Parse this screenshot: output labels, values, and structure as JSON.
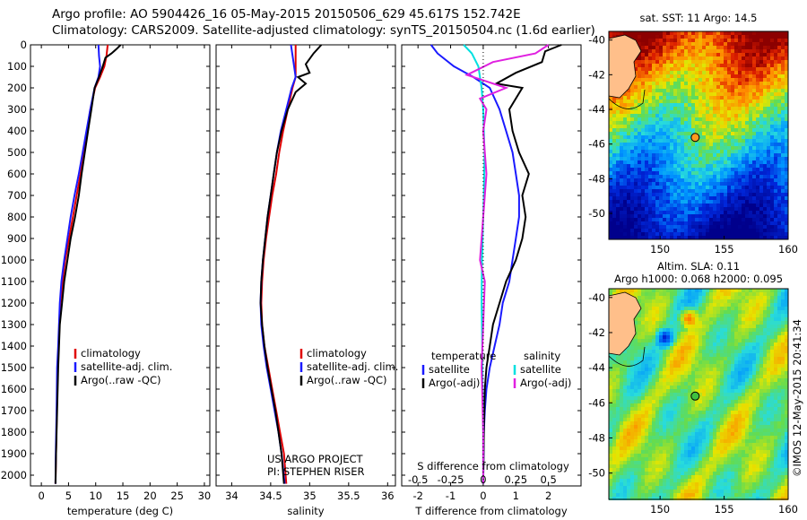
{
  "header": {
    "line1": "Argo profile: AO 5904426_16 05-May-2015 20150506_629 45.617S 152.742E",
    "line2": "Climatology: CARS2009. Satellite-adjusted climatology: synTS_20150504.nc (1.6d earlier)"
  },
  "colors": {
    "climatology": "#e00000",
    "satellite": "#1a1aff",
    "argo": "#000000",
    "satellite_s": "#00e0e0",
    "argo_s": "#e020e0"
  },
  "chart_data": [
    {
      "type": "line",
      "title": "",
      "xlabel": "temperature (deg C)",
      "ylabel": "",
      "xlim": [
        -2,
        31
      ],
      "ylim": [
        2050,
        0
      ],
      "xticks": [
        "0",
        "5",
        "10",
        "15",
        "20",
        "25",
        "30"
      ],
      "yticks": [
        "0",
        "100",
        "200",
        "300",
        "400",
        "500",
        "600",
        "700",
        "800",
        "900",
        "1000",
        "1100",
        "1200",
        "1300",
        "1400",
        "1500",
        "1600",
        "1700",
        "1800",
        "1900",
        "2000"
      ],
      "legend": [
        "climatology",
        "satellite-adj. clim.",
        "Argo(..raw -QC)"
      ],
      "series": [
        {
          "name": "climatology",
          "color_key": "climatology",
          "x": [
            12.2,
            12.0,
            11.6,
            10.8,
            9.9,
            9.0,
            8.4,
            7.8,
            7.2,
            6.5,
            5.8,
            5.1,
            4.4,
            3.9,
            3.5,
            3.2,
            3.0,
            2.85,
            2.7,
            2.6
          ],
          "y": [
            0,
            50,
            100,
            150,
            200,
            300,
            400,
            500,
            600,
            700,
            800,
            900,
            1000,
            1100,
            1200,
            1400,
            1500,
            1700,
            1900,
            2040
          ]
        },
        {
          "name": "satellite-adj. clim.",
          "color_key": "satellite",
          "x": [
            10.5,
            10.6,
            10.8,
            10.5,
            9.8,
            9.0,
            8.3,
            7.6,
            6.9,
            6.1,
            5.4,
            4.8,
            4.2,
            3.7,
            3.4,
            3.1,
            2.9,
            2.8,
            2.65,
            2.6
          ],
          "y": [
            0,
            50,
            100,
            150,
            200,
            300,
            400,
            500,
            600,
            700,
            800,
            900,
            1000,
            1100,
            1200,
            1400,
            1500,
            1700,
            1900,
            2040
          ]
        },
        {
          "name": "Argo(..raw -QC)",
          "color_key": "argo",
          "x": [
            14.6,
            13.8,
            12.9,
            11.8,
            11.3,
            10.6,
            9.8,
            9.2,
            8.6,
            8.0,
            7.4,
            6.9,
            6.2,
            5.4,
            4.8,
            4.2,
            3.8,
            3.4,
            3.1,
            2.9,
            2.8,
            2.7,
            2.6
          ],
          "y": [
            0,
            20,
            40,
            60,
            100,
            150,
            200,
            300,
            400,
            500,
            600,
            700,
            800,
            900,
            1000,
            1100,
            1200,
            1300,
            1500,
            1700,
            1800,
            1900,
            2040
          ]
        }
      ]
    },
    {
      "type": "line",
      "title": "",
      "xlabel": "salinity",
      "ylabel": "",
      "xlim": [
        33.8,
        36.1
      ],
      "ylim": [
        2050,
        0
      ],
      "xticks": [
        "34",
        "34.5",
        "35",
        "35.5",
        "36"
      ],
      "legend": [
        "climatology",
        "satellite-adj. clim.",
        "Argo(..raw -QC)"
      ],
      "series": [
        {
          "name": "climatology",
          "color_key": "climatology",
          "x": [
            34.82,
            34.82,
            34.82,
            34.78,
            34.72,
            34.66,
            34.61,
            34.57,
            34.52,
            34.48,
            34.44,
            34.41,
            34.39,
            34.38,
            34.39,
            34.42,
            34.47,
            34.52,
            34.57,
            34.62,
            34.67,
            34.7
          ],
          "y": [
            0,
            100,
            150,
            200,
            300,
            400,
            500,
            600,
            700,
            800,
            900,
            1000,
            1100,
            1200,
            1300,
            1400,
            1500,
            1600,
            1700,
            1800,
            1900,
            2040
          ]
        },
        {
          "name": "satellite-adj. clim.",
          "color_key": "satellite",
          "x": [
            34.76,
            34.8,
            34.82,
            34.77,
            34.7,
            34.63,
            34.58,
            34.54,
            34.5,
            34.46,
            34.43,
            34.4,
            34.38,
            34.37,
            34.38,
            34.41,
            34.45,
            34.5,
            34.55,
            34.6,
            34.64,
            34.68
          ],
          "y": [
            0,
            100,
            150,
            200,
            300,
            400,
            500,
            600,
            700,
            800,
            900,
            1000,
            1100,
            1200,
            1300,
            1400,
            1500,
            1600,
            1700,
            1800,
            1900,
            2040
          ]
        },
        {
          "name": "Argo(..raw -QC)",
          "color_key": "argo",
          "x": [
            35.15,
            35.05,
            34.95,
            35.0,
            34.85,
            34.95,
            34.82,
            34.72,
            34.64,
            34.58,
            34.54,
            34.5,
            34.46,
            34.43,
            34.4,
            34.38,
            34.37,
            34.39,
            34.42,
            34.46,
            34.51,
            34.56,
            34.6,
            34.64,
            34.67
          ],
          "y": [
            0,
            40,
            90,
            130,
            150,
            180,
            220,
            300,
            400,
            500,
            600,
            700,
            800,
            900,
            1000,
            1100,
            1200,
            1300,
            1400,
            1500,
            1600,
            1700,
            1800,
            1900,
            2040
          ]
        }
      ]
    },
    {
      "type": "line",
      "title": "",
      "xlabel": "T difference from climatology",
      "xlabel_top": "S difference from climatology",
      "xlim": [
        -2.5,
        3.0
      ],
      "ylim": [
        2050,
        0
      ],
      "xticks": [
        "-2",
        "-1",
        "0",
        "1",
        "2"
      ],
      "xticks_top": [
        "-0.5",
        "-0.25",
        "0",
        "0.25",
        "0.5"
      ],
      "legend": [
        "temperature",
        "satellite",
        "Argo(-adj)",
        "salinity",
        "satellite",
        "Argo(-adj)"
      ],
      "series": [
        {
          "name": "satellite",
          "color_key": "satellite",
          "x": [
            -1.6,
            -1.4,
            -0.9,
            -0.3,
            0.2,
            0.5,
            0.7,
            0.9,
            1.0,
            1.1,
            1.1,
            1.0,
            0.9,
            0.8,
            0.6,
            0.5,
            0.35,
            0.2,
            0.1,
            0.05,
            0.02,
            0.0
          ],
          "y": [
            0,
            40,
            100,
            150,
            200,
            300,
            400,
            500,
            600,
            700,
            800,
            900,
            1000,
            1100,
            1200,
            1300,
            1400,
            1500,
            1600,
            1700,
            1800,
            2040
          ]
        },
        {
          "name": "Argo(-adj)",
          "color_key": "argo",
          "x": [
            2.4,
            1.9,
            1.8,
            1.0,
            0.4,
            1.2,
            0.8,
            0.9,
            1.1,
            1.4,
            1.2,
            1.3,
            1.2,
            1.0,
            0.7,
            0.5,
            0.3,
            0.2,
            0.1,
            0.05,
            0.02,
            0.0
          ],
          "y": [
            0,
            30,
            80,
            130,
            180,
            200,
            300,
            400,
            500,
            600,
            700,
            800,
            900,
            1000,
            1100,
            1200,
            1300,
            1400,
            1500,
            1600,
            1800,
            2040
          ]
        },
        {
          "name": "satellite",
          "color_key": "satellite_s",
          "x": [
            -0.6,
            -0.35,
            -0.15,
            -0.05,
            0.0,
            0.02,
            0.04,
            0.03,
            0.02,
            0.0,
            -0.02,
            -0.04,
            -0.05,
            -0.03,
            -0.02,
            0.0,
            0.0
          ],
          "y": [
            0,
            40,
            100,
            200,
            300,
            400,
            500,
            600,
            700,
            800,
            900,
            1000,
            1200,
            1400,
            1600,
            1800,
            2040
          ]
        },
        {
          "name": "Argo(-adj)",
          "color_key": "argo_s",
          "x": [
            2.0,
            1.6,
            0.3,
            -0.5,
            0.7,
            -0.1,
            0.1,
            0.0,
            0.05,
            0.1,
            0.0,
            -0.1,
            0.05,
            0.0,
            -0.05,
            0.0,
            0.0
          ],
          "y": [
            0,
            40,
            80,
            140,
            200,
            250,
            300,
            400,
            500,
            600,
            800,
            1000,
            1100,
            1300,
            1500,
            1800,
            2040
          ]
        }
      ]
    },
    {
      "type": "heatmap",
      "title": "sat. SST: 11 Argo: 14.5",
      "xlim": [
        146,
        160
      ],
      "ylim": [
        -51.5,
        -39.5
      ],
      "xticks": [
        "150",
        "155",
        "160"
      ],
      "yticks": [
        "-40",
        "-42",
        "-44",
        "-46",
        "-48",
        "-50"
      ],
      "argo_position": {
        "lon": 152.742,
        "lat": -45.617
      }
    },
    {
      "type": "heatmap",
      "title": "Altim. SLA: 0.11",
      "subtitle": "Argo h1000: 0.068 h2000: 0.095",
      "xlim": [
        146,
        160
      ],
      "ylim": [
        -51.5,
        -39.5
      ],
      "xticks": [
        "150",
        "155",
        "160"
      ],
      "yticks": [
        "-40",
        "-42",
        "-44",
        "-46",
        "-48",
        "-50"
      ],
      "argo_position": {
        "lon": 152.742,
        "lat": -45.617
      }
    }
  ],
  "footer": {
    "project_line1": "US ARGO PROJECT",
    "project_line2": "PI: STEPHEN RISER",
    "imos_stamp": "©IMOS 12-May-2015 20:41:34"
  }
}
